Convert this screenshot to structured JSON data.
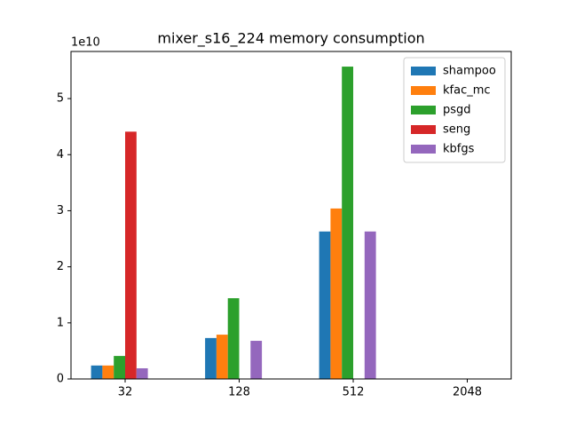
{
  "chart_data": {
    "type": "bar",
    "title": "mixer_s16_224 memory consumption",
    "y_offset_label": "1e10",
    "categories": [
      "32",
      "128",
      "512",
      "2048"
    ],
    "series": [
      {
        "name": "shampoo",
        "color": "#1f77b4",
        "values": [
          0.24,
          0.73,
          2.63,
          null
        ]
      },
      {
        "name": "kfac_mc",
        "color": "#ff7f0e",
        "values": [
          0.24,
          0.79,
          3.04,
          null
        ]
      },
      {
        "name": "psgd",
        "color": "#2ca02c",
        "values": [
          0.41,
          1.44,
          5.57,
          null
        ]
      },
      {
        "name": "seng",
        "color": "#d62728",
        "values": [
          4.41,
          null,
          null,
          null
        ]
      },
      {
        "name": "kbfgs",
        "color": "#9467bd",
        "values": [
          0.19,
          0.68,
          2.63,
          null
        ]
      }
    ],
    "ylim": [
      0,
      5.84
    ],
    "yticks": [
      0,
      1,
      2,
      3,
      4,
      5
    ],
    "grid": false,
    "legend": "upper right"
  }
}
